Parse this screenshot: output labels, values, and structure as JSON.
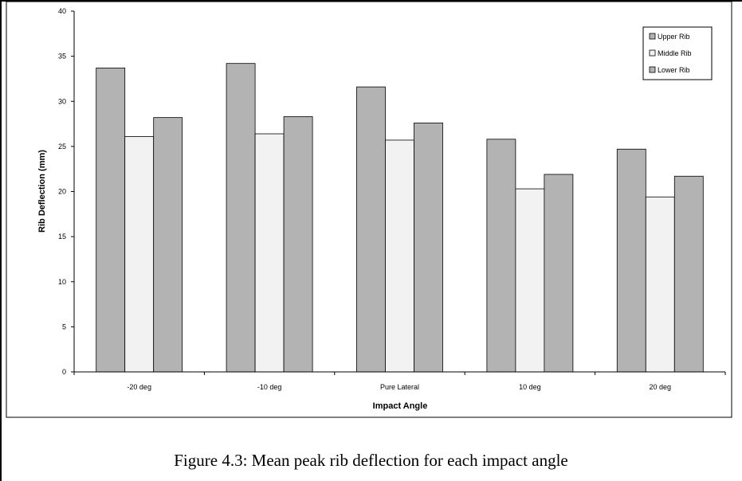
{
  "caption": "Figure 4.3: Mean peak rib deflection for each impact angle",
  "chart_data": {
    "type": "bar",
    "title": "",
    "xlabel": "Impact Angle",
    "ylabel": "Rib Deflection (mm)",
    "ylim": [
      0,
      40
    ],
    "yticks": [
      0,
      5,
      10,
      15,
      20,
      25,
      30,
      35,
      40
    ],
    "categories": [
      "-20 deg",
      "-10 deg",
      "Pure Lateral",
      "10 deg",
      "20 deg"
    ],
    "series": [
      {
        "name": "Upper Rib",
        "color": "#b3b3b3",
        "values": [
          33.7,
          34.2,
          31.6,
          25.8,
          24.7
        ]
      },
      {
        "name": "Middle Rib",
        "color": "#f2f2f2",
        "values": [
          26.1,
          26.4,
          25.7,
          20.3,
          19.4
        ]
      },
      {
        "name": "Lower Rib",
        "color": "#b3b3b3",
        "values": [
          28.2,
          28.3,
          27.6,
          21.9,
          21.7
        ]
      }
    ],
    "grid": false,
    "legend_position": "top-right",
    "border_color": "#000000"
  }
}
